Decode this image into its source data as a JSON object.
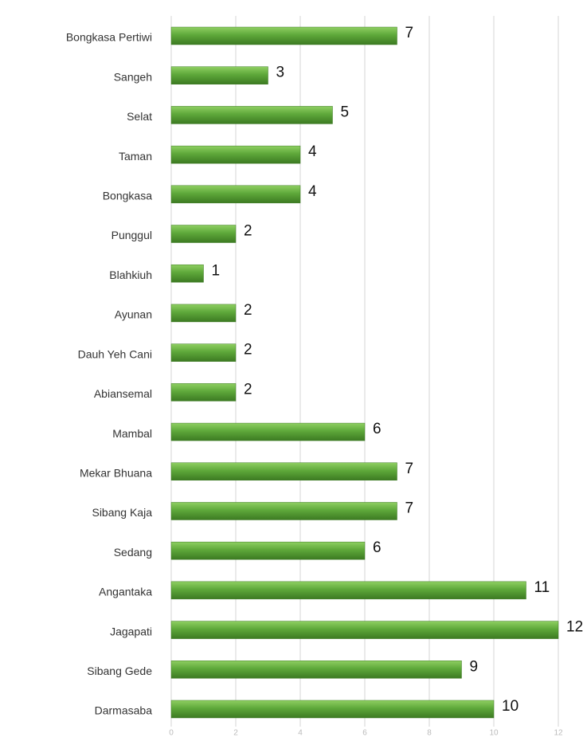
{
  "chart_data": {
    "type": "barh",
    "categories": [
      "Bongkasa Pertiwi",
      "Sangeh",
      "Selat",
      "Taman",
      "Bongkasa",
      "Punggul",
      "Blahkiuh",
      "Ayunan",
      "Dauh Yeh Cani",
      "Abiansemal",
      "Mambal",
      "Mekar Bhuana",
      "Sibang Kaja",
      "Sedang",
      "Angantaka",
      "Jagapati",
      "Sibang Gede",
      "Darmasaba"
    ],
    "values": [
      7,
      3,
      5,
      4,
      4,
      2,
      1,
      2,
      2,
      2,
      6,
      7,
      7,
      6,
      11,
      12,
      9,
      10
    ],
    "color": "#5ea83a",
    "xlim": [
      0,
      12
    ],
    "xticks": [
      0,
      2,
      4,
      6,
      8,
      10,
      12
    ],
    "grid": true
  }
}
